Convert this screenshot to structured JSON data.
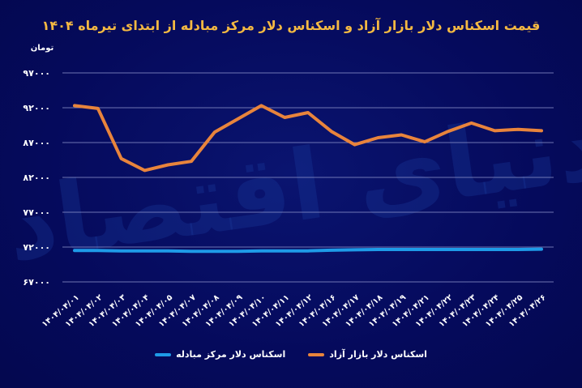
{
  "title": "قیمت اسکناس دلار بازار آزاد و اسکناس دلار مرکز مبادله از ابتدای تیرماه ۱۴۰۴",
  "unit": "تومان",
  "watermark": "دنیای اقتصاد",
  "colors": {
    "background": "#050a5c",
    "title": "#f4b942",
    "free_market": "#e8843c",
    "exchange_center": "#1e9be8",
    "grid": "#8a90c8"
  },
  "legend": [
    {
      "label": "اسکناس دلار بازار آزاد",
      "color": "#e8843c"
    },
    {
      "label": "اسکناس دلار مرکز مبادله",
      "color": "#1e9be8"
    }
  ],
  "chart_data": {
    "type": "line",
    "title": "قیمت اسکناس دلار بازار آزاد و اسکناس دلار مرکز مبادله از ابتدای تیرماه ۱۴۰۴",
    "ylabel": "تومان",
    "xlabel": "",
    "ylim": [
      67000,
      97000
    ],
    "yticks": [
      67000,
      72000,
      77000,
      82000,
      87000,
      92000,
      97000
    ],
    "ytick_labels": [
      "۶۷۰۰۰",
      "۷۲۰۰۰",
      "۷۷۰۰۰",
      "۸۲۰۰۰",
      "۸۷۰۰۰",
      "۹۲۰۰۰",
      "۹۷۰۰۰"
    ],
    "grid": true,
    "legend_position": "bottom",
    "categories": [
      "۱۴۰۴/۰۴/۰۱",
      "۱۴۰۴/۰۴/۰۲",
      "۱۴۰۴/۰۴/۰۳",
      "۱۴۰۴/۰۴/۰۴",
      "۱۴۰۴/۰۴/۰۵",
      "۱۴۰۴/۰۴/۰۷",
      "۱۴۰۴/۰۴/۰۸",
      "۱۴۰۴/۰۴/۰۹",
      "۱۴۰۴/۰۴/۱۰",
      "۱۴۰۴/۰۴/۱۱",
      "۱۴۰۴/۰۴/۱۲",
      "۱۴۰۴/۰۴/۱۶",
      "۱۴۰۴/۰۴/۱۷",
      "۱۴۰۴/۰۴/۱۸",
      "۱۴۰۴/۰۴/۱۹",
      "۱۴۰۴/۰۴/۲۱",
      "۱۴۰۴/۰۴/۲۲",
      "۱۴۰۴/۰۴/۲۳",
      "۱۴۰۴/۰۴/۲۴",
      "۱۴۰۴/۰۴/۲۵",
      "۱۴۰۴/۰۴/۲۶"
    ],
    "series": [
      {
        "name": "اسکناس دلار بازار آزاد",
        "color": "#e8843c",
        "values": [
          92300,
          91900,
          84700,
          83000,
          83800,
          84300,
          88500,
          90400,
          92300,
          90600,
          91300,
          88600,
          86700,
          87700,
          88100,
          87100,
          88600,
          89800,
          88700,
          88900,
          88700
        ]
      },
      {
        "name": "اسکناس دلار مرکز مبادله",
        "color": "#1e9be8",
        "values": [
          71500,
          71500,
          71450,
          71450,
          71450,
          71400,
          71400,
          71400,
          71450,
          71450,
          71450,
          71550,
          71600,
          71650,
          71650,
          71650,
          71650,
          71650,
          71650,
          71650,
          71700
        ]
      }
    ]
  }
}
